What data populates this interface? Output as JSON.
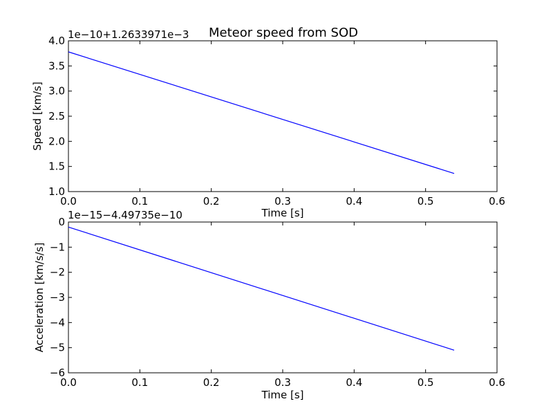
{
  "chart_data": [
    {
      "type": "line",
      "title": "Meteor speed from  SOD",
      "xlabel": "Time [s]",
      "ylabel": "Speed [km/s]",
      "offset_text": "1e−10+1.2633971e−3",
      "xlim": [
        0,
        0.6
      ],
      "ylim": [
        1.0,
        4.0
      ],
      "xticks": [
        "0.0",
        "0.1",
        "0.2",
        "0.3",
        "0.4",
        "0.5",
        "0.6"
      ],
      "yticks": [
        "1.0",
        "1.5",
        "2.0",
        "2.5",
        "3.0",
        "3.5",
        "4.0"
      ],
      "grid": false,
      "color": "#0000ff",
      "series": [
        {
          "x": [
            0.0,
            0.54
          ],
          "y": [
            3.78,
            1.36
          ]
        }
      ]
    },
    {
      "type": "line",
      "title": "",
      "xlabel": "Time [s]",
      "ylabel": "Acceleration [km/s/s]",
      "offset_text": "1e−15−4.49735e−10",
      "xlim": [
        0,
        0.6
      ],
      "ylim": [
        -6,
        0
      ],
      "xticks": [
        "0.0",
        "0.1",
        "0.2",
        "0.3",
        "0.4",
        "0.5",
        "0.6"
      ],
      "yticks": [
        "−6",
        "−5",
        "−4",
        "−3",
        "−2",
        "−1",
        "0"
      ],
      "grid": false,
      "color": "#0000ff",
      "series": [
        {
          "x": [
            0.0,
            0.54
          ],
          "y": [
            -0.2,
            -5.1
          ]
        }
      ]
    }
  ]
}
